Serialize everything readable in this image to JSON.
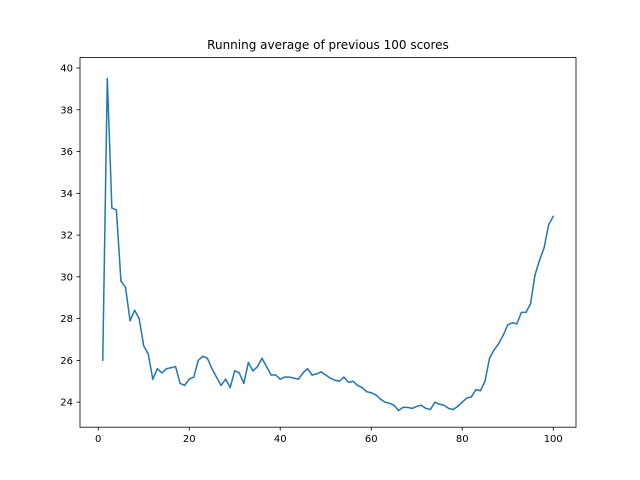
{
  "chart_data": {
    "type": "line",
    "title": "Running average of previous 100 scores",
    "xlabel": "",
    "ylabel": "",
    "xlim": [
      -4,
      105
    ],
    "ylim": [
      22.8,
      40.5
    ],
    "xticks": [
      0,
      20,
      40,
      60,
      80,
      100
    ],
    "yticks": [
      24,
      26,
      28,
      30,
      32,
      34,
      36,
      38,
      40
    ],
    "grid": false,
    "legend": "none",
    "line_color": "#1f77b4",
    "series": [
      {
        "x": [
          1,
          2,
          3,
          4,
          5,
          6,
          7,
          8,
          9,
          10,
          11,
          12,
          13,
          14,
          15,
          16,
          17,
          18,
          19,
          20,
          21,
          22,
          23,
          24,
          25,
          26,
          27,
          28,
          29,
          30,
          31,
          32,
          33,
          34,
          35,
          36,
          37,
          38,
          39,
          40,
          41,
          42,
          43,
          44,
          45,
          46,
          47,
          48,
          49,
          50,
          51,
          52,
          53,
          54,
          55,
          56,
          57,
          58,
          59,
          60,
          61,
          62,
          63,
          64,
          65,
          66,
          67,
          68,
          69,
          70,
          71,
          72,
          73,
          74,
          75,
          76,
          77,
          78,
          79,
          80,
          81,
          82,
          83,
          84,
          85,
          86,
          87,
          88,
          89,
          90,
          91,
          92,
          93,
          94,
          95,
          96,
          97,
          98,
          99,
          100
        ],
        "values": [
          26.0,
          39.5,
          33.3,
          33.2,
          29.8,
          29.5,
          27.9,
          28.4,
          28.0,
          26.7,
          26.3,
          25.1,
          25.6,
          25.4,
          25.6,
          25.65,
          25.7,
          24.9,
          24.8,
          25.1,
          25.2,
          26.0,
          26.2,
          26.1,
          25.6,
          25.2,
          24.8,
          25.1,
          24.7,
          25.5,
          25.4,
          24.9,
          25.9,
          25.5,
          25.7,
          26.1,
          25.7,
          25.3,
          25.3,
          25.1,
          25.2,
          25.2,
          25.15,
          25.1,
          25.4,
          25.6,
          25.3,
          25.35,
          25.45,
          25.3,
          25.15,
          25.05,
          25.0,
          25.2,
          24.95,
          25.0,
          24.8,
          24.7,
          24.5,
          24.45,
          24.35,
          24.15,
          24.0,
          23.95,
          23.85,
          23.6,
          23.75,
          23.75,
          23.7,
          23.8,
          23.85,
          23.7,
          23.65,
          24.0,
          23.9,
          23.85,
          23.7,
          23.65,
          23.8,
          24.0,
          24.2,
          24.25,
          24.6,
          24.55,
          25.0,
          26.1,
          26.5,
          26.8,
          27.2,
          27.7,
          27.8,
          27.75,
          28.3,
          28.3,
          28.7,
          30.1,
          30.8,
          31.4,
          32.5,
          32.9
        ]
      }
    ]
  }
}
